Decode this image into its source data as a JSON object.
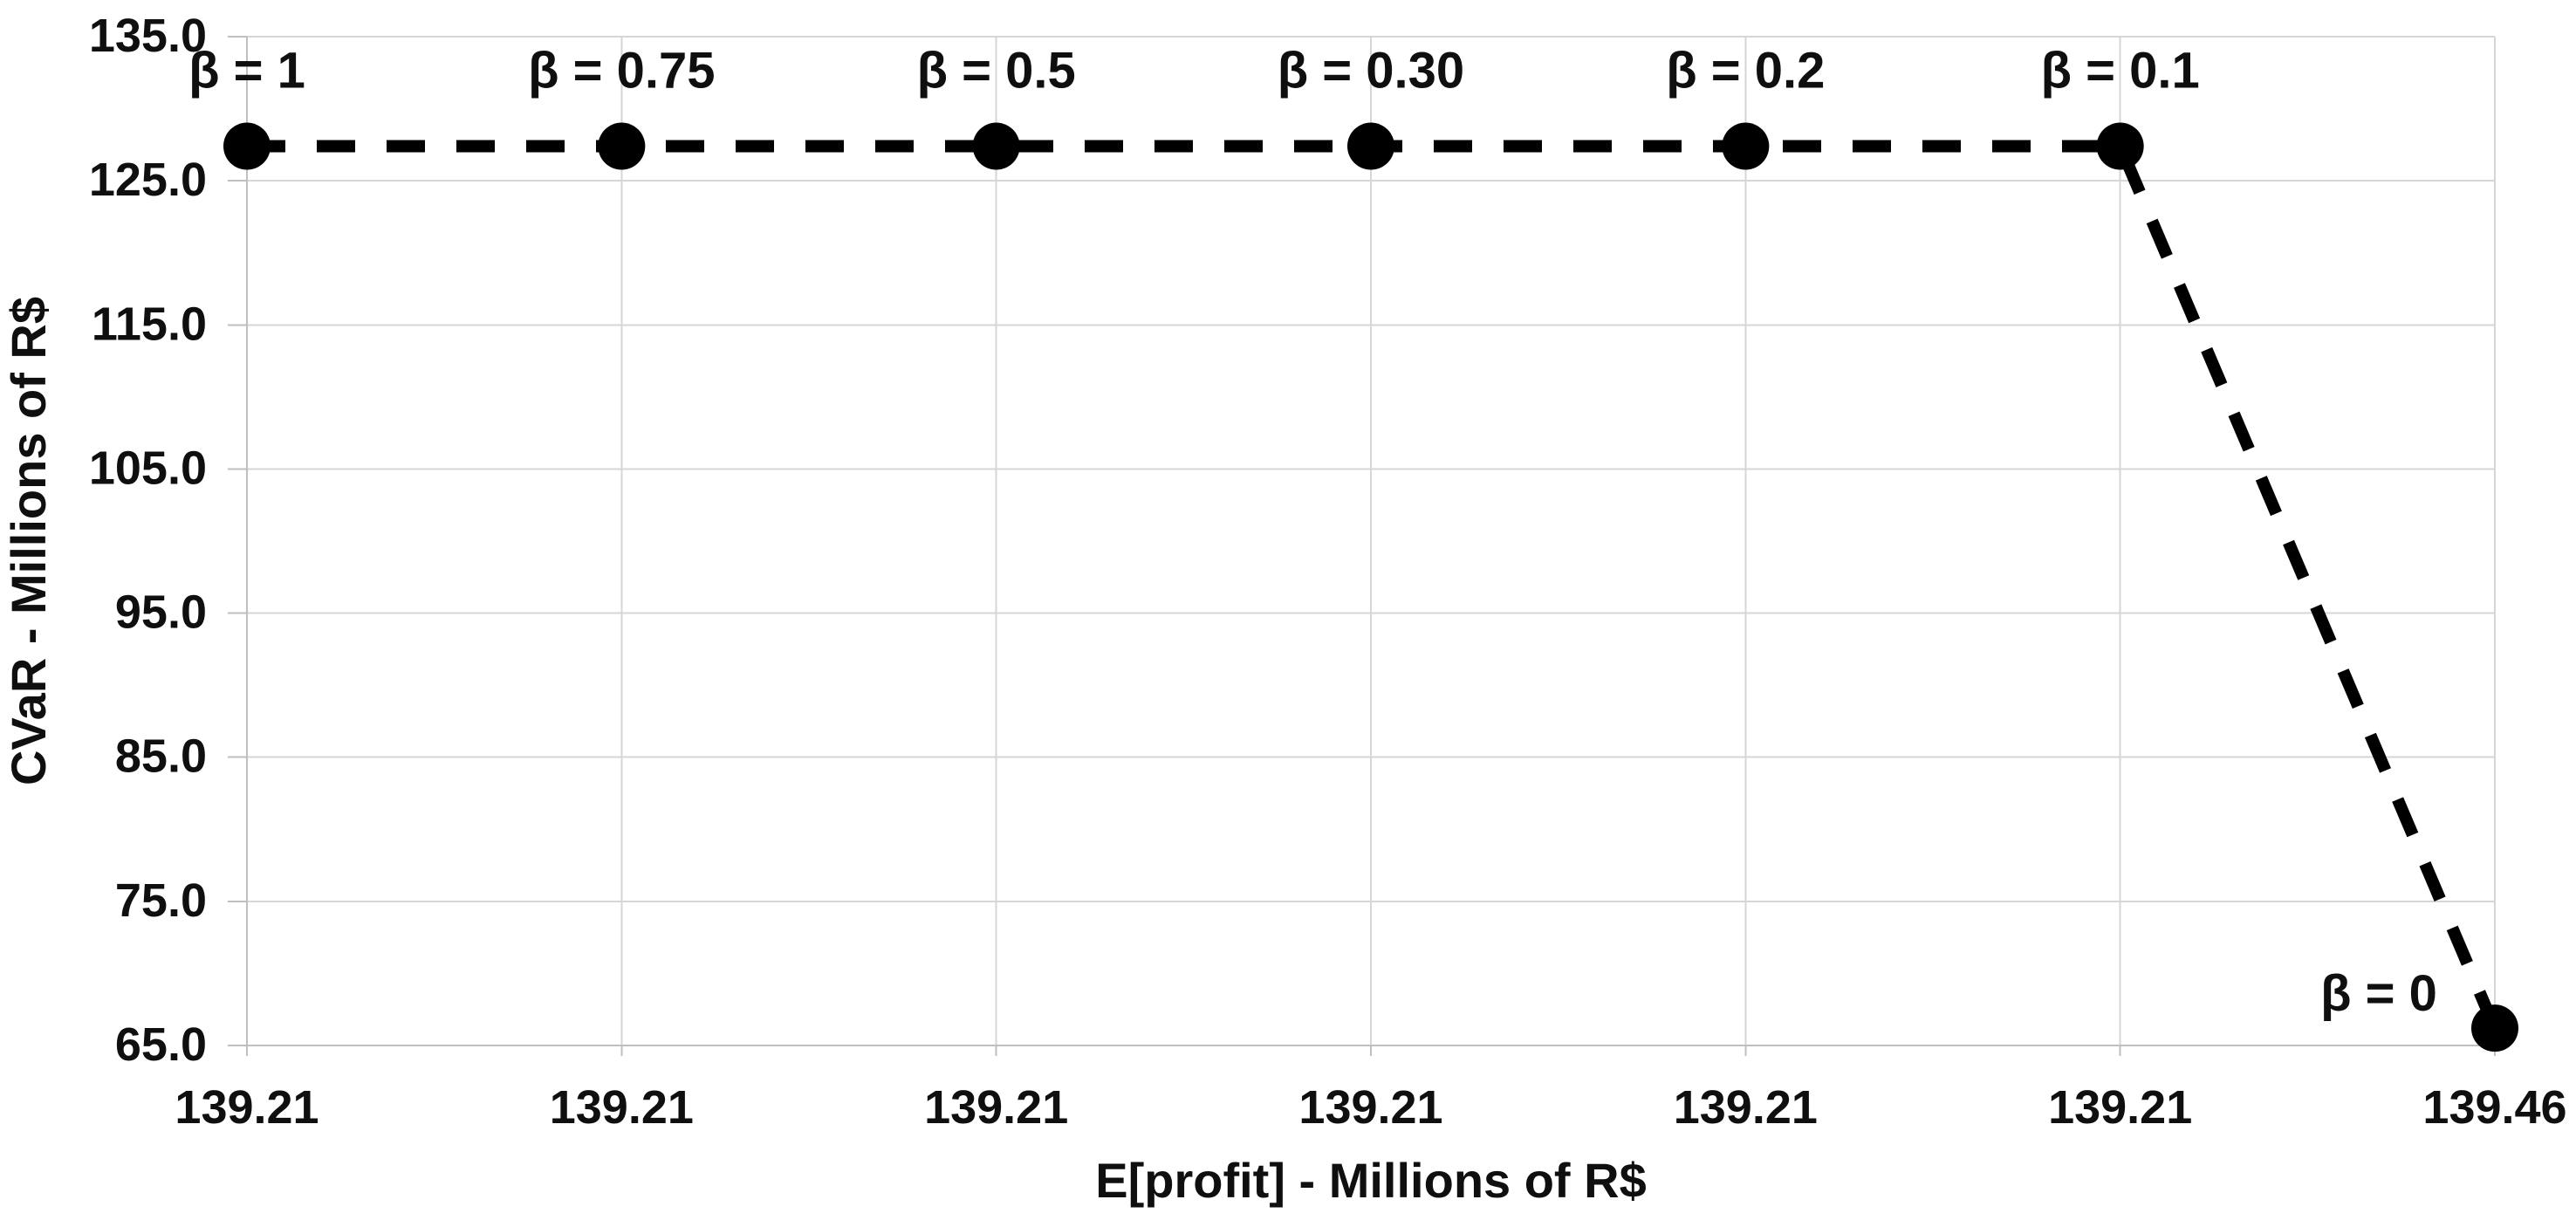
{
  "page": {
    "background": "#ffffff"
  },
  "chart_data": {
    "type": "line",
    "title": "",
    "xlabel": "E[profit] - Millions of R$",
    "ylabel": "CVaR - Millions of R$",
    "categories": [
      "139.21",
      "139.21",
      "139.21",
      "139.21",
      "139.21",
      "139.21",
      "139.46"
    ],
    "series": [
      {
        "name": "",
        "values": [
          127.4,
          127.4,
          127.4,
          127.4,
          127.4,
          127.4,
          66.2
        ]
      }
    ],
    "point_labels": [
      "β = 1",
      "β = 0.75",
      "β = 0.5",
      "β = 0.30",
      "β = 0.2",
      "β = 0.1",
      "β = 0"
    ],
    "ylim": [
      65,
      135
    ],
    "ytick_step": 10,
    "ytick_labels": [
      "135.0",
      "125.0",
      "115.0",
      "105.0",
      "95.0",
      "85.0",
      "75.0",
      "65.0"
    ],
    "grid": true,
    "legend": "none",
    "line_style": {
      "dashed": true,
      "color": "#000000",
      "width": 14,
      "dash": 44,
      "gap": 36
    },
    "marker_style": {
      "shape": "circle",
      "color": "#000000",
      "radius": 27
    },
    "colors": {
      "grid": "#d6d6d6",
      "axis": "#bfbfbf",
      "text": "#0f0f0f",
      "background": "#ffffff"
    }
  }
}
